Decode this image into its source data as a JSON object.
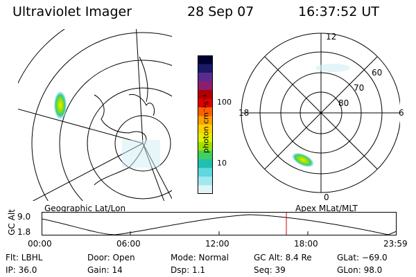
{
  "header": {
    "title": "Ultraviolet Imager",
    "date": "28 Sep 07",
    "time": "16:37:52 UT"
  },
  "colorbar": {
    "label": "photon cm⁻²s⁻¹",
    "ticks": [
      "100",
      "10"
    ],
    "colors_top_to_bottom": [
      "#000033",
      "#1a1a66",
      "#5a2a8c",
      "#8c1e6e",
      "#b00000",
      "#e00000",
      "#ff6000",
      "#ffa000",
      "#ffd000",
      "#e0f000",
      "#a0e000",
      "#40d060",
      "#20c0b0",
      "#60d8e0",
      "#a0e8f0",
      "#e0f4f8"
    ]
  },
  "geo_panel": {
    "label": "Geographic Lat/Lon"
  },
  "apex_panel": {
    "label": "Apex MLat/MLT",
    "mlt_labels": {
      "top": "12",
      "bottom": "0",
      "left": "18",
      "right": "6"
    },
    "lat_labels": [
      "60",
      "70",
      "80"
    ]
  },
  "altitude_plot": {
    "ylabel": "GC Alt",
    "yticks": [
      "9.0",
      "1.8"
    ],
    "xticks": [
      "00:00",
      "06:00",
      "12:00",
      "18:00",
      "23:59"
    ]
  },
  "info": {
    "flt": "Flt: LBHL",
    "ip": "IP: 36.0",
    "door": "Door: Open",
    "gain": "Gain: 14",
    "mode": "Mode: Normal",
    "dsp": "Dsp:     1.1",
    "gc_alt": "GC Alt: 8.4 Re",
    "seq": "Seq: 39",
    "glat": "GLat: −69.0",
    "glon": "GLon:  98.0"
  }
}
